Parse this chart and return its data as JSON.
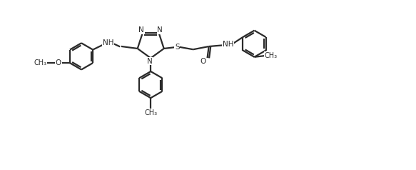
{
  "background_color": "#ffffff",
  "line_color": "#2a2a2a",
  "line_width": 1.6,
  "figsize": [
    5.83,
    2.38
  ],
  "dpi": 100,
  "xlim": [
    0,
    11.5
  ],
  "ylim": [
    -2.8,
    2.8
  ]
}
